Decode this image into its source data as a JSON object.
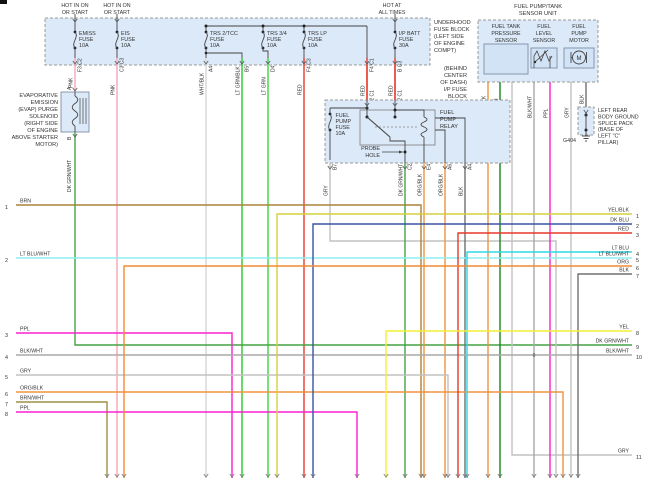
{
  "diagram": {
    "underhood": {
      "label": [
        "UNDERHOOD",
        "FUSE BLOCK",
        "(LEFT SIDE",
        "OF ENGINE",
        "COMPT)"
      ],
      "hot": [
        [
          "HOT IN ON",
          "OR START"
        ],
        [
          "HOT IN ON",
          "OR START"
        ],
        [
          "HOT AT",
          "ALL TIMES"
        ]
      ],
      "fuses": [
        [
          "EMISS",
          "FUSE",
          "10A"
        ],
        [
          "EIS",
          "FUSE",
          "10A"
        ],
        [
          "TRS 2/TCC",
          "FUSE",
          "10A"
        ],
        [
          "TRS 3/4",
          "FUSE",
          "10A"
        ],
        [
          "TRS LP",
          "FUSE",
          "10A"
        ],
        [
          "I/P BATT",
          "FUSE",
          "30A"
        ]
      ],
      "pins": [
        "F3 C2",
        "C3 C3",
        "A4",
        "B5",
        "D4",
        "F4 C3",
        "F4 C1",
        "B C3"
      ],
      "wire_names": [
        "PNK",
        "PNK",
        "WHT/BLK",
        "LT GRN/BLK",
        "LT GRN",
        "RED",
        "RED",
        "RED"
      ]
    },
    "evap": {
      "label": [
        "EVAPORATIVE",
        "EMISSION",
        "(EVAP) PURGE",
        "SOLENOID",
        "(RIGHT SIDE",
        "OF ENGINE",
        "ABOVE STARTER",
        "MOTOR)"
      ],
      "pin_top": "A",
      "pin_bottom": "B",
      "wire": "DK GRN/WHT"
    },
    "ip_block": {
      "label": [
        "(BEHIND",
        "CENTER",
        "OF DASH)",
        "I/P FUSE",
        "BLOCK"
      ],
      "top_pins": [
        "B2 C1",
        "A2 C1"
      ],
      "fuse": [
        "FUEL",
        "PUMP",
        "FUSE",
        "10A"
      ],
      "relay": [
        "FUEL",
        "PUMP",
        "RELAY"
      ],
      "probe": [
        "PROBE",
        "HOLE"
      ],
      "bottom_pins": [
        "B7 C2",
        "C2",
        "E4 C1",
        "A6 C3",
        "A4 C3"
      ],
      "bottom_wires": [
        "GRY",
        "DK GRN/WHT",
        "ORG/BLK",
        "ORG/BLK",
        "BLK"
      ]
    },
    "sensor_unit": {
      "title": [
        "FUEL PUMP/TANK",
        "SENSOR UNIT"
      ],
      "pressure": {
        "label": [
          "FUEL TANK",
          "PRESSURE",
          "SENSOR"
        ],
        "pins": [
          "A",
          "B",
          "C"
        ],
        "conn": "C1",
        "wires": [
          "ORG/BLK",
          "DK GRN",
          "GRY"
        ]
      },
      "level": {
        "label": [
          "FUEL",
          "LEVEL",
          "SENSOR"
        ],
        "pins": [
          "B",
          "C"
        ],
        "wires": [
          "BLK/WHT",
          "PPL"
        ]
      },
      "motor": {
        "label": [
          "FUEL",
          "PUMP",
          "MOTOR"
        ],
        "pins": [
          "A",
          "D"
        ],
        "conn": "C2",
        "wires": [
          "GRY",
          "BLK"
        ]
      }
    },
    "ground": {
      "code": "G404",
      "label": [
        "LEFT REAR",
        "BODY GROUND",
        "SPLICE PACK",
        "(BASE OF",
        "LEFT \"C\"",
        "PILLAR)"
      ]
    },
    "left_exits": [
      {
        "num": "1",
        "name": "BRN"
      },
      {
        "num": "2",
        "name": "LT BLU/WHT"
      },
      {
        "num": "3",
        "name": "PPL"
      },
      {
        "num": "4",
        "name": "BLK/WHT"
      },
      {
        "num": "5",
        "name": "GRY"
      },
      {
        "num": "6",
        "name": "ORG/BLK"
      },
      {
        "num": "7",
        "name": "BRN/WHT"
      },
      {
        "num": "8",
        "name": "PPL"
      }
    ],
    "right_exits": [
      {
        "num": "1",
        "name": "YEL/BLK"
      },
      {
        "num": "2",
        "name": "DK BLU"
      },
      {
        "num": "3",
        "name": "RED"
      },
      {
        "num": "4",
        "name": "LT BLU"
      },
      {
        "num": "5",
        "name": "LT BLU/WHT"
      },
      {
        "num": "6",
        "name": "ORG"
      },
      {
        "num": "7",
        "name": "BLK"
      },
      {
        "num": "8",
        "name": "YEL"
      },
      {
        "num": "9",
        "name": "DK GRN/WHT"
      },
      {
        "num": "10",
        "name": "BLK/WHT"
      },
      {
        "num": "11",
        "name": "GRY"
      }
    ],
    "colors": {
      "PNK": "#f6a6b8",
      "RED": "#e8382c",
      "WHT/BLK": "#d6d6d6",
      "LT GRN/BLK": "#28c828",
      "LT GRN": "#3cd43c",
      "DK GRN/WHT": "#44a244",
      "DK GRN": "#17851b",
      "GRY": "#c2c2c2",
      "BLK/WHT": "#a9a9a9",
      "BLK": "#707070",
      "ORG/BLK": "#ef9340",
      "ORG": "#f28c33",
      "BRN": "#aa8339",
      "BRN/WHT": "#9d9046",
      "PPL": "#fb20cf",
      "DK BLU": "#3a53a4",
      "LT BLU": "#2fd8e4",
      "LT BLU/WHT": "#8feef2",
      "YEL": "#f4ef33",
      "YEL/BLK": "#d6cf3e",
      "box_fill": "#dbe9f8",
      "box_stroke": "#999999",
      "internal": "#444444"
    }
  }
}
